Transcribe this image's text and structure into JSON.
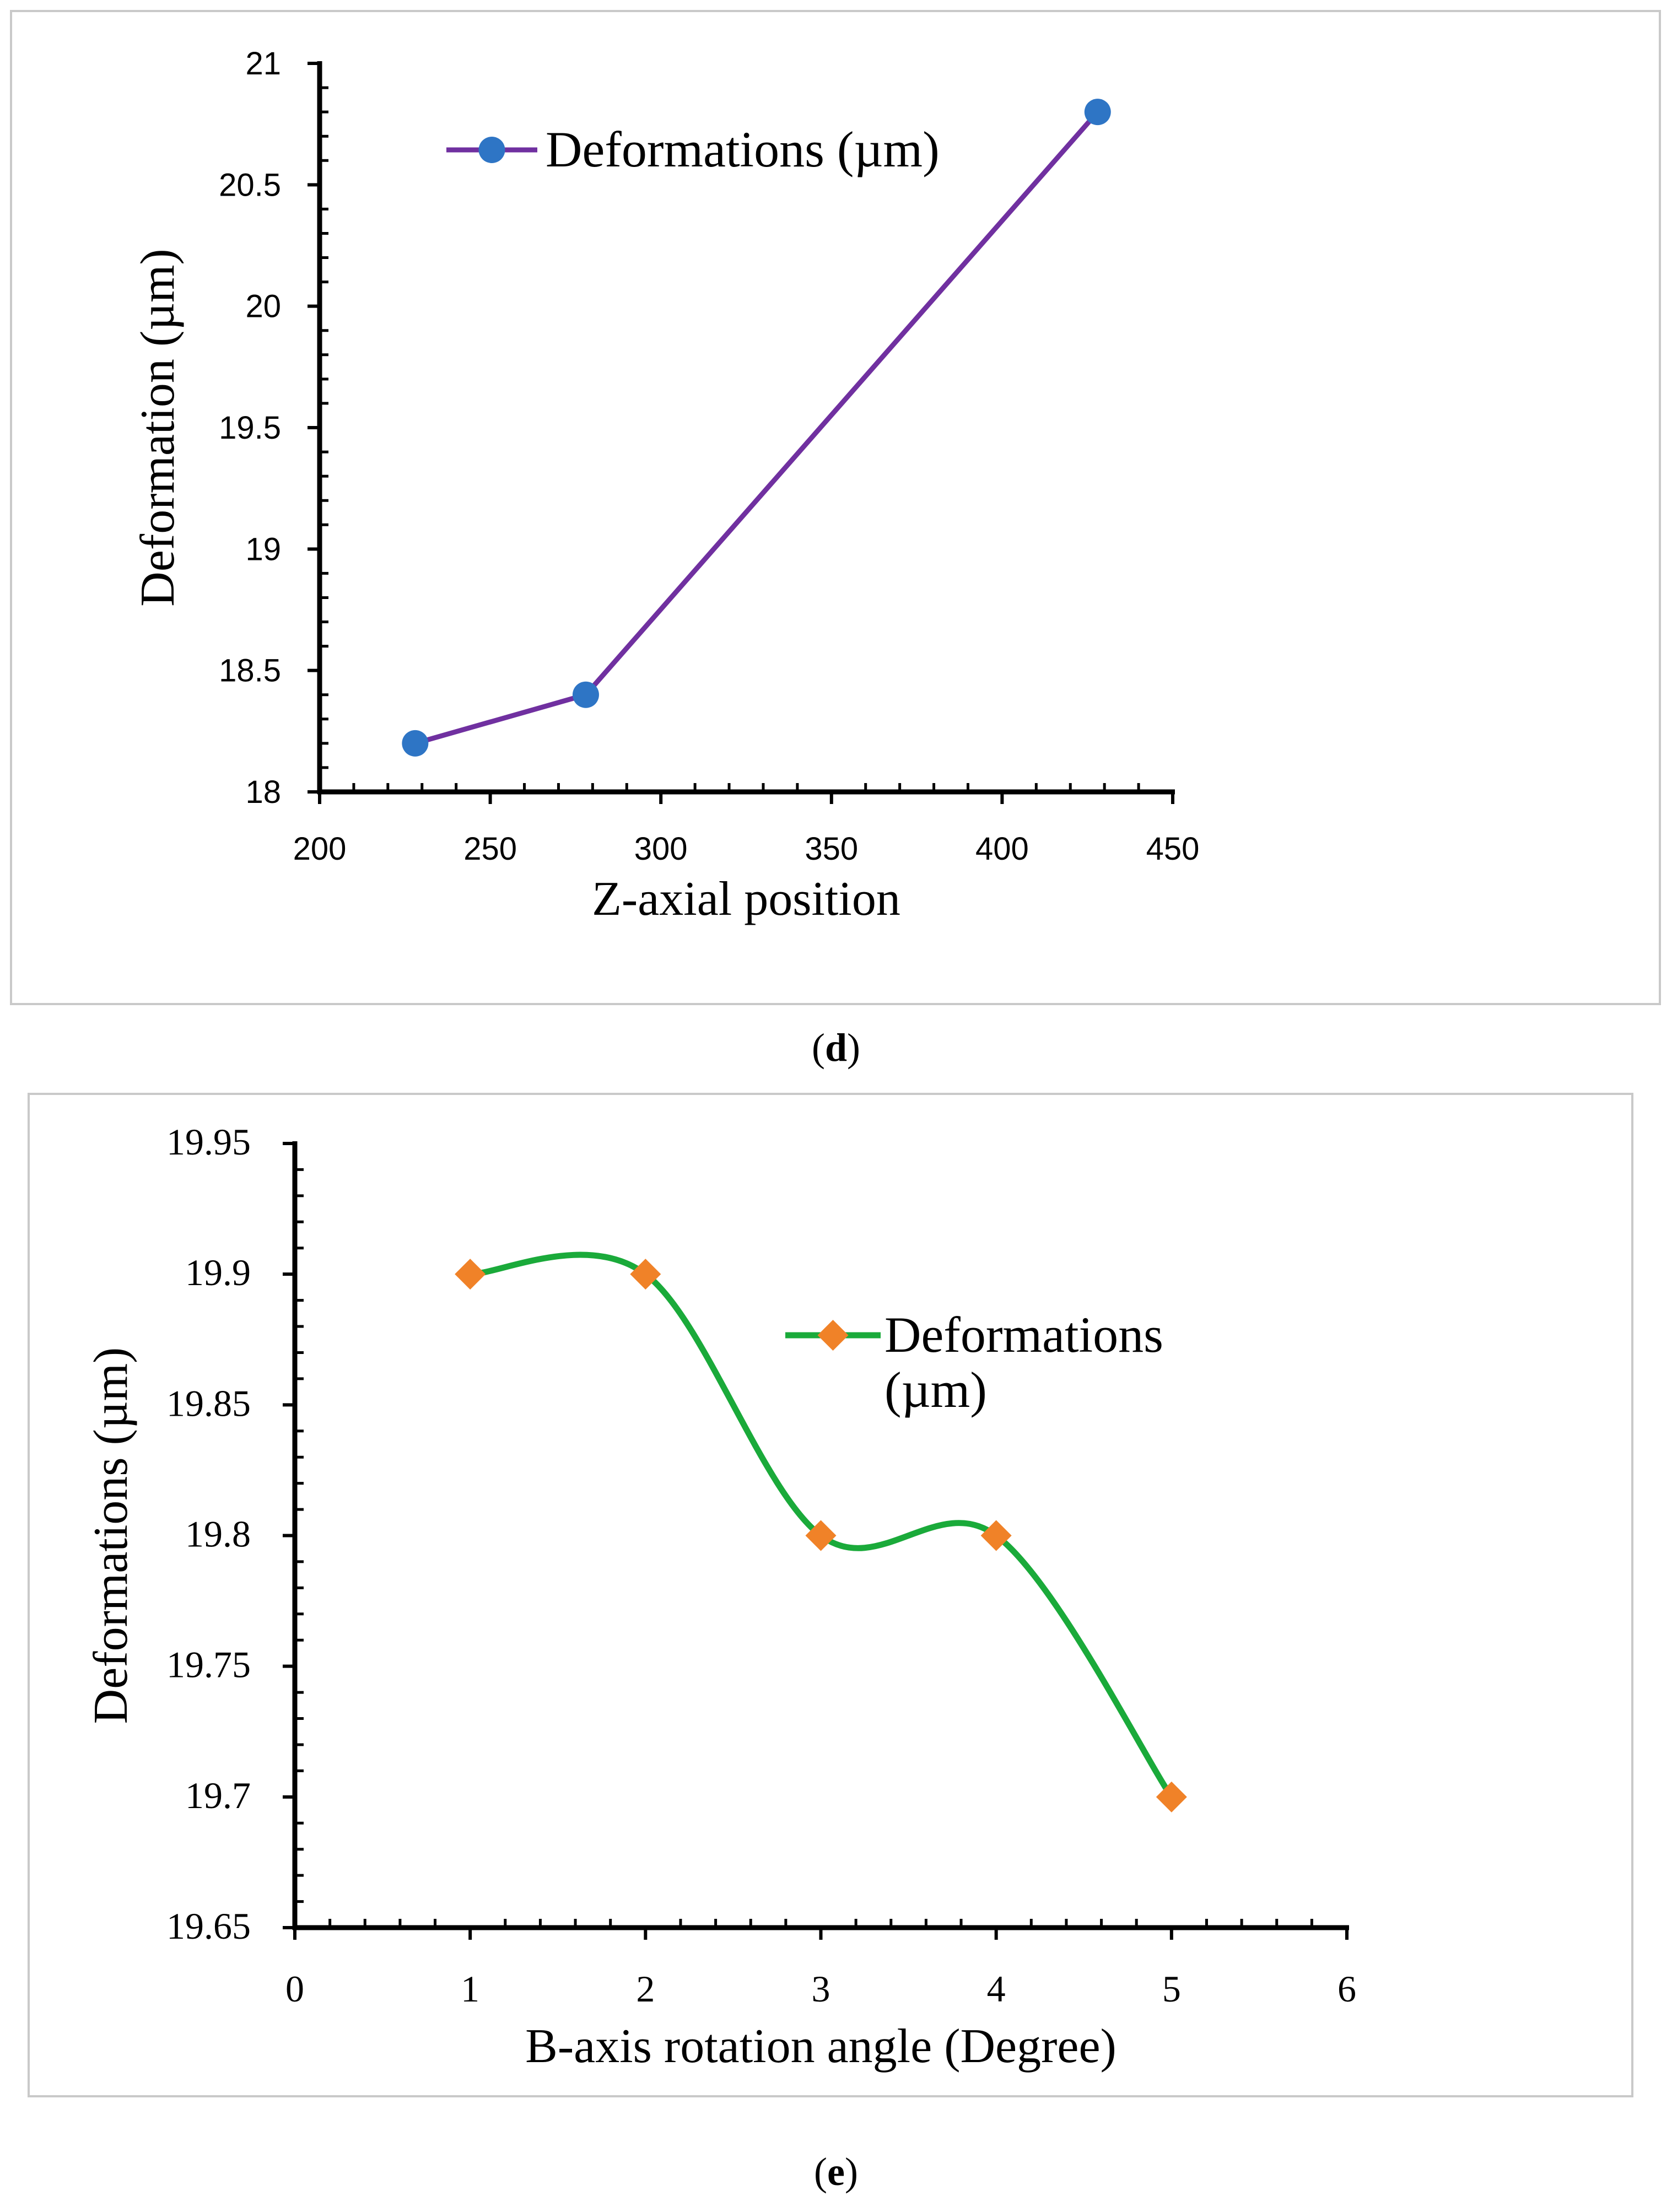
{
  "chart_data": [
    {
      "panel": "d",
      "type": "line",
      "title": "",
      "xlabel": "Z-axial position",
      "ylabel": "Deformation (µm)",
      "xlim": [
        200,
        450
      ],
      "ylim": [
        18,
        21
      ],
      "xticks": [
        200,
        250,
        300,
        350,
        400,
        450
      ],
      "yticks": [
        18,
        18.5,
        19,
        19.5,
        20,
        20.5,
        21
      ],
      "legend_position": "top-left",
      "series": [
        {
          "name": "Deformations (µm)",
          "x": [
            228,
            278,
            428
          ],
          "y": [
            18.2,
            18.4,
            20.8
          ],
          "line_color": "#7030a0",
          "marker_color": "#2e75c5",
          "marker": "circle",
          "smooth": false
        }
      ]
    },
    {
      "panel": "e",
      "type": "line",
      "title": "",
      "xlabel": "B-axis rotation angle (Degree)",
      "ylabel": "Deformations (µm)",
      "xlim": [
        0,
        6
      ],
      "ylim": [
        19.65,
        19.95
      ],
      "xticks": [
        0,
        1,
        2,
        3,
        4,
        5,
        6
      ],
      "yticks": [
        19.65,
        19.7,
        19.75,
        19.8,
        19.85,
        19.9,
        19.95
      ],
      "legend_position": "top-right",
      "series": [
        {
          "name_lines": [
            "Deformations",
            "(µm)"
          ],
          "x": [
            1,
            2,
            3,
            4,
            5
          ],
          "y": [
            19.9,
            19.9,
            19.8,
            19.8,
            19.7
          ],
          "line_color": "#1aaa3a",
          "marker_color": "#f08228",
          "marker": "diamond",
          "smooth": true
        }
      ]
    }
  ],
  "captions": {
    "d": {
      "open": "(",
      "letter": "d",
      "close": ")"
    },
    "e": {
      "open": "(",
      "letter": "e",
      "close": ")"
    }
  }
}
